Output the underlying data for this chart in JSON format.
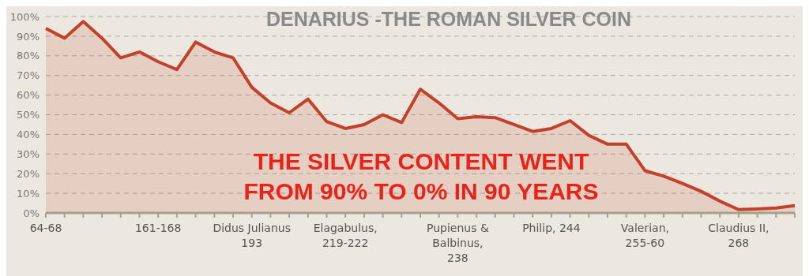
{
  "chart_data": {
    "type": "area",
    "title": "DENARIUS -THE ROMAN SILVER COIN",
    "categories": [
      "64-68",
      null,
      null,
      null,
      null,
      null,
      "161-168",
      null,
      null,
      null,
      null,
      "Didus Julianus\n193",
      null,
      null,
      null,
      null,
      "Elagabulus,\n219-222",
      null,
      null,
      null,
      null,
      null,
      "Pupienus &\nBalbinus,\n238",
      null,
      null,
      null,
      null,
      "Philip, 244",
      null,
      null,
      null,
      null,
      "Valerian,\n255-60",
      null,
      null,
      null,
      null,
      "Claudius II,\n268",
      null,
      null,
      null
    ],
    "series": [
      {
        "color": "#c4402a",
        "values": [
          94,
          89,
          97.5,
          89,
          79,
          82,
          77,
          73,
          87,
          82,
          79,
          64,
          56,
          51,
          58,
          46.5,
          43,
          45,
          50,
          46,
          63,
          56,
          48,
          49,
          48.5,
          45,
          41.5,
          43,
          47,
          39.5,
          35,
          35,
          21.5,
          18.7,
          15,
          11,
          6,
          1.7,
          2,
          2.5,
          3.7
        ]
      }
    ],
    "ylim": [
      0,
      100
    ],
    "yticks": [
      {
        "value": 0,
        "label": "0%"
      },
      {
        "value": 10,
        "label": "10%"
      },
      {
        "value": 20,
        "label": "20%"
      },
      {
        "value": 30,
        "label": "30%"
      },
      {
        "value": 40,
        "label": "40%"
      },
      {
        "value": 50,
        "label": "50%"
      },
      {
        "value": 60,
        "label": "60%"
      },
      {
        "value": 70,
        "label": "70%"
      },
      {
        "value": 80,
        "label": "80%"
      },
      {
        "value": 90,
        "label": "90%"
      },
      {
        "value": 100,
        "label": "100%"
      }
    ],
    "grid": "y",
    "annotations": [
      "THE SILVER CONTENT WENT FROM 90% TO 0% IN 90 YEARS"
    ]
  }
}
